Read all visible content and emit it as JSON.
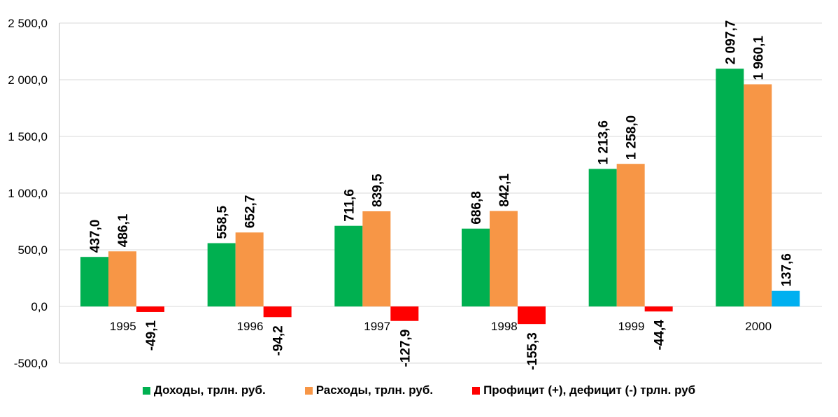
{
  "chart_data": {
    "type": "bar",
    "title": "",
    "xlabel": "",
    "ylabel": "",
    "ylim": [
      -500,
      2500
    ],
    "ytick_step": 500,
    "grid": true,
    "legend_position": "bottom",
    "categories": [
      "1995",
      "1996",
      "1997",
      "1998",
      "1999",
      "2000"
    ],
    "series": [
      {
        "name": "Доходы, трлн. руб.",
        "color": "#00b050",
        "values": [
          437.0,
          558.5,
          711.6,
          686.8,
          1213.6,
          2097.7
        ]
      },
      {
        "name": "Расходы, трлн. руб.",
        "color": "#f79646",
        "values": [
          486.1,
          652.7,
          839.5,
          842.1,
          1258.0,
          1960.1
        ]
      },
      {
        "name": "Профицит (+), дефицит (-) трлн. руб",
        "color": "#ff0000",
        "positive_color": "#00b0f0",
        "values": [
          -49.1,
          -94.2,
          -127.9,
          -155.3,
          -44.4,
          137.6
        ]
      }
    ]
  }
}
